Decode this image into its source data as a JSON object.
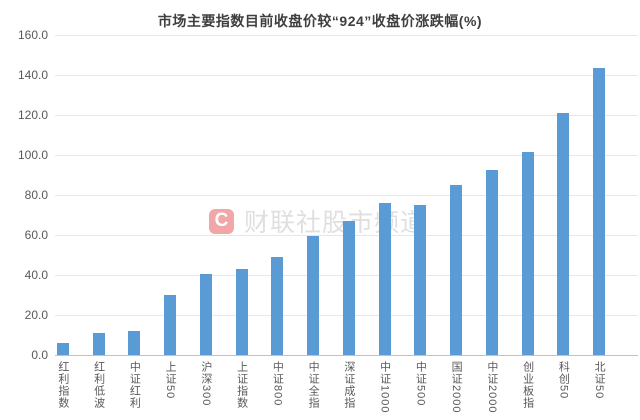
{
  "chart_data": {
    "type": "bar",
    "title": "市场主要指数目前收盘价较“924”收盘价涨跌幅(%)",
    "categories": [
      "红利指数",
      "红利低波",
      "中证红利",
      "上证50",
      "沪深300",
      "上证指数",
      "中证800",
      "中证全指",
      "深证成指",
      "中证1000",
      "中证500",
      "国证2000",
      "中证2000",
      "创业板指",
      "科创50",
      "北证50"
    ],
    "values": [
      5.8,
      10.8,
      12.0,
      30.0,
      40.5,
      43.0,
      49.0,
      59.3,
      66.8,
      75.8,
      75.0,
      85.0,
      92.3,
      101.7,
      120.8,
      143.7
    ],
    "xlabel": "",
    "ylabel": "",
    "ylim": [
      0,
      160
    ],
    "ytick_step": 20,
    "ytick_labels": [
      "0.0",
      "20.0",
      "40.0",
      "60.0",
      "80.0",
      "100.0",
      "120.0",
      "140.0",
      "160.0"
    ],
    "grid": true,
    "legend_position": "none",
    "bar_color": "#5b9bd5"
  },
  "watermark": {
    "logo_letter": "C",
    "text": "财联社股市频道",
    "logo_color": "#e23d3d"
  }
}
